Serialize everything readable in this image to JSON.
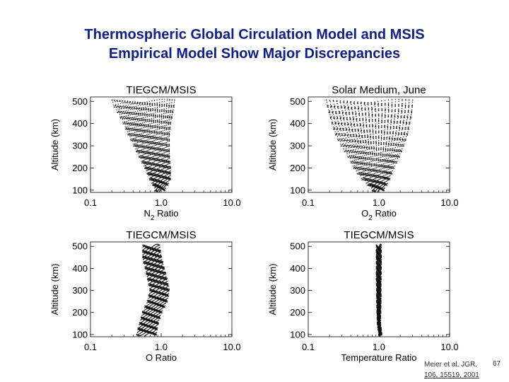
{
  "slide": {
    "title_line1": "Thermospheric Global Circulation Model and MSIS",
    "title_line2": "Empirical Model Show Major Discrepancies",
    "citation_line1": "Meier et al. JGR,",
    "citation_line2": "106, 15519, 2001",
    "slide_number": "67",
    "colors": {
      "title": "#0d1f86",
      "axes": "#000000",
      "marks": "#111111"
    }
  },
  "chart_data": [
    {
      "type": "scatter",
      "title": "TIEGCM/MSIS",
      "xlabel_main": "N",
      "xlabel_sub": "2",
      "xlabel_tail": " Ratio",
      "ylabel": "Altitude (km)",
      "xscale": "log",
      "xlim": [
        0.1,
        10.0
      ],
      "ylim": [
        90,
        520
      ],
      "xticks": [
        "0.1",
        "1.0",
        "10.0"
      ],
      "xtick_values": [
        0.1,
        1.0,
        10.0
      ],
      "yticks": [
        100,
        200,
        300,
        400,
        500
      ],
      "ratio_profile": [
        {
          "alt": 100,
          "low": 0.85,
          "high": 1.1
        },
        {
          "alt": 150,
          "low": 0.7,
          "high": 1.35
        },
        {
          "alt": 200,
          "low": 0.6,
          "high": 1.35
        },
        {
          "alt": 250,
          "low": 0.5,
          "high": 1.3
        },
        {
          "alt": 300,
          "low": 0.42,
          "high": 1.3
        },
        {
          "alt": 350,
          "low": 0.35,
          "high": 1.3
        },
        {
          "alt": 400,
          "low": 0.3,
          "high": 1.35
        },
        {
          "alt": 450,
          "low": 0.25,
          "high": 1.45
        },
        {
          "alt": 500,
          "low": 0.2,
          "high": 1.55
        }
      ]
    },
    {
      "type": "scatter",
      "title": "Solar Medium, June",
      "xlabel_main": "O",
      "xlabel_sub": "2",
      "xlabel_tail": " Ratio",
      "ylabel": "Altitude (km)",
      "xscale": "log",
      "xlim": [
        0.1,
        10.0
      ],
      "ylim": [
        90,
        520
      ],
      "xticks": [
        "0.1",
        "1.0",
        "10.0"
      ],
      "xtick_values": [
        0.1,
        1.0,
        10.0
      ],
      "yticks": [
        100,
        200,
        300,
        400,
        500
      ],
      "ratio_profile": [
        {
          "alt": 100,
          "low": 0.85,
          "high": 1.15
        },
        {
          "alt": 150,
          "low": 0.6,
          "high": 1.4
        },
        {
          "alt": 200,
          "low": 0.45,
          "high": 1.6
        },
        {
          "alt": 250,
          "low": 0.38,
          "high": 1.9
        },
        {
          "alt": 300,
          "low": 0.3,
          "high": 2.2
        },
        {
          "alt": 350,
          "low": 0.25,
          "high": 2.5
        },
        {
          "alt": 400,
          "low": 0.22,
          "high": 2.7
        },
        {
          "alt": 450,
          "low": 0.2,
          "high": 2.9
        },
        {
          "alt": 500,
          "low": 0.18,
          "high": 3.0
        }
      ]
    },
    {
      "type": "scatter",
      "title": "TIEGCM/MSIS",
      "xlabel_main": "O Ratio",
      "xlabel_sub": "",
      "xlabel_tail": "",
      "ylabel": "Altitude (km)",
      "xscale": "log",
      "xlim": [
        0.1,
        10.0
      ],
      "ylim": [
        90,
        520
      ],
      "xticks": [
        "0.1",
        "1.0",
        "10.0"
      ],
      "xtick_values": [
        0.1,
        1.0,
        10.0
      ],
      "yticks": [
        100,
        200,
        300,
        400,
        500
      ],
      "ratio_profile": [
        {
          "alt": 100,
          "low": 0.45,
          "high": 0.85
        },
        {
          "alt": 150,
          "low": 0.5,
          "high": 0.9
        },
        {
          "alt": 200,
          "low": 0.55,
          "high": 1.0
        },
        {
          "alt": 250,
          "low": 0.65,
          "high": 1.2
        },
        {
          "alt": 300,
          "low": 0.7,
          "high": 1.3
        },
        {
          "alt": 350,
          "low": 0.65,
          "high": 1.2
        },
        {
          "alt": 400,
          "low": 0.6,
          "high": 1.1
        },
        {
          "alt": 450,
          "low": 0.55,
          "high": 1.0
        },
        {
          "alt": 500,
          "low": 0.55,
          "high": 0.95
        }
      ]
    },
    {
      "type": "scatter",
      "title": "TIEGCM/MSIS",
      "xlabel_main": "Temperature Ratio",
      "xlabel_sub": "",
      "xlabel_tail": "",
      "ylabel": "Altitude (km)",
      "xscale": "log",
      "xlim": [
        0.1,
        10.0
      ],
      "ylim": [
        90,
        520
      ],
      "xticks": [
        "0.1",
        "1.0",
        "10.0"
      ],
      "xtick_values": [
        0.1,
        1.0,
        10.0
      ],
      "yticks": [
        100,
        200,
        300,
        400,
        500
      ],
      "ratio_profile": [
        {
          "alt": 100,
          "low": 1.0,
          "high": 1.1
        },
        {
          "alt": 150,
          "low": 0.95,
          "high": 1.05
        },
        {
          "alt": 200,
          "low": 0.94,
          "high": 1.06
        },
        {
          "alt": 250,
          "low": 0.93,
          "high": 1.07
        },
        {
          "alt": 300,
          "low": 0.93,
          "high": 1.07
        },
        {
          "alt": 350,
          "low": 0.92,
          "high": 1.07
        },
        {
          "alt": 400,
          "low": 0.92,
          "high": 1.08
        },
        {
          "alt": 450,
          "low": 0.92,
          "high": 1.08
        },
        {
          "alt": 500,
          "low": 0.92,
          "high": 1.08
        }
      ]
    }
  ]
}
